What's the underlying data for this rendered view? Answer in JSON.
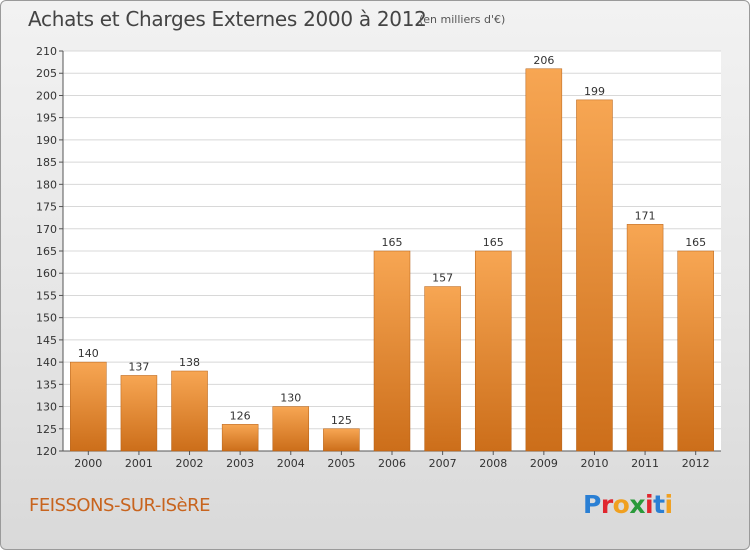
{
  "header": {
    "title": "Achats et Charges Externes 2000 à 2012",
    "subtitle": "(en milliers d'€)"
  },
  "footer": {
    "town": "FEISSONS-SUR-ISèRE",
    "logo_text": "Proxiti",
    "logo_letters": [
      {
        "ch": "P",
        "color": "#2a7fd4"
      },
      {
        "ch": "r",
        "color": "#e0262e"
      },
      {
        "ch": "o",
        "color": "#f0a020"
      },
      {
        "ch": "x",
        "color": "#2a9a3a"
      },
      {
        "ch": "i",
        "color": "#e0262e"
      },
      {
        "ch": "t",
        "color": "#2a7fd4"
      },
      {
        "ch": "i",
        "color": "#f0a020"
      }
    ]
  },
  "colors": {
    "bar_top": "#f7a653",
    "bar_bottom": "#cc6e1a",
    "plot_bg": "#ffffff",
    "grid": "#d8d8d8",
    "town": "#c8641e"
  },
  "chart_data": {
    "type": "bar",
    "title": "Achats et Charges Externes 2000 à 2012",
    "subtitle": "(en milliers d'€)",
    "categories": [
      "2000",
      "2001",
      "2002",
      "2003",
      "2004",
      "2005",
      "2006",
      "2007",
      "2008",
      "2009",
      "2010",
      "2011",
      "2012"
    ],
    "values": [
      140,
      137,
      138,
      126,
      130,
      125,
      165,
      157,
      165,
      206,
      199,
      171,
      165
    ],
    "ylim": [
      120,
      210
    ],
    "yticks": [
      120,
      125,
      130,
      135,
      140,
      145,
      150,
      155,
      160,
      165,
      170,
      175,
      180,
      185,
      190,
      195,
      200,
      205,
      210
    ],
    "grid": true,
    "xlabel": "",
    "ylabel": ""
  }
}
